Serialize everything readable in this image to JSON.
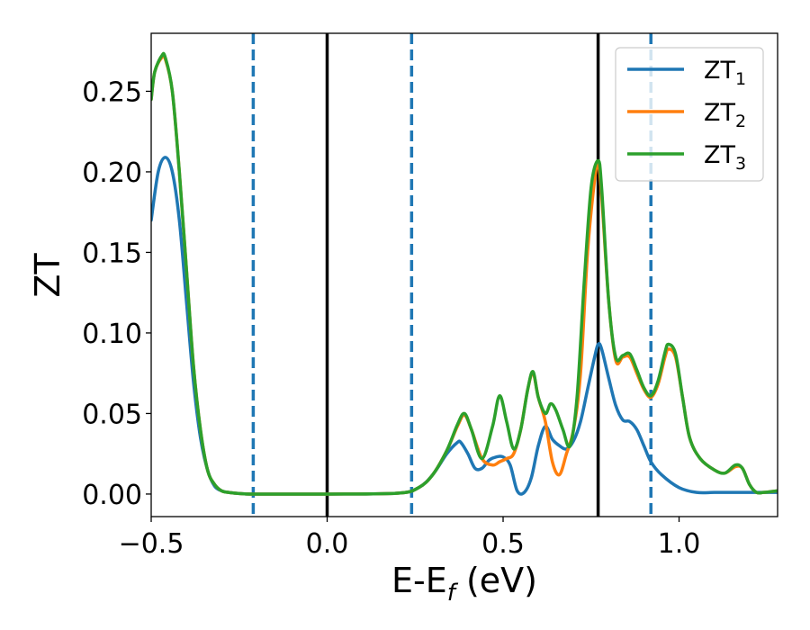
{
  "chart_data": {
    "type": "line",
    "title": "",
    "xlabel": "E-E",
    "xlabel_sub": "f",
    "xlabel_unit": "(eV)",
    "ylabel": "ZT",
    "xlim": [
      -0.5,
      1.28
    ],
    "ylim": [
      -0.014,
      0.286
    ],
    "grid": false,
    "legend": "top-right",
    "xticks": [
      -0.5,
      0.0,
      0.5,
      1.0
    ],
    "xtick_labels": [
      "−0.5",
      "0.0",
      "0.5",
      "1.0"
    ],
    "yticks": [
      0.0,
      0.05,
      0.1,
      0.15,
      0.2,
      0.25
    ],
    "ytick_labels": [
      "0.00",
      "0.05",
      "0.10",
      "0.15",
      "0.20",
      "0.25"
    ],
    "vlines": [
      {
        "x": -0.21,
        "style": "dashed",
        "color": "#1f77b4"
      },
      {
        "x": 0.0,
        "style": "solid",
        "color": "#000000"
      },
      {
        "x": 0.24,
        "style": "dashed",
        "color": "#1f77b4"
      },
      {
        "x": 0.77,
        "style": "solid",
        "color": "#000000"
      },
      {
        "x": 0.92,
        "style": "dashed",
        "color": "#1f77b4"
      }
    ],
    "series": [
      {
        "name": "ZT",
        "name_sub": "1",
        "color": "#1f77b4",
        "x": [
          -0.5,
          -0.48,
          -0.46,
          -0.44,
          -0.42,
          -0.4,
          -0.38,
          -0.36,
          -0.34,
          -0.32,
          -0.3,
          -0.28,
          -0.26,
          -0.24,
          -0.2,
          0.0,
          0.2,
          0.26,
          0.3,
          0.34,
          0.37,
          0.38,
          0.4,
          0.42,
          0.44,
          0.46,
          0.48,
          0.5,
          0.52,
          0.54,
          0.56,
          0.58,
          0.6,
          0.62,
          0.64,
          0.66,
          0.68,
          0.7,
          0.72,
          0.74,
          0.76,
          0.77,
          0.78,
          0.8,
          0.82,
          0.84,
          0.86,
          0.88,
          0.9,
          0.92,
          0.95,
          1.0,
          1.05,
          1.1,
          1.15,
          1.2,
          1.28
        ],
        "y": [
          0.17,
          0.2,
          0.209,
          0.2,
          0.17,
          0.12,
          0.07,
          0.035,
          0.015,
          0.005,
          0.002,
          0.001,
          0.0005,
          0.0002,
          0.0,
          0.0,
          0.0005,
          0.004,
          0.012,
          0.025,
          0.032,
          0.032,
          0.025,
          0.016,
          0.016,
          0.021,
          0.023,
          0.023,
          0.018,
          0.002,
          0.001,
          0.01,
          0.03,
          0.042,
          0.034,
          0.03,
          0.028,
          0.033,
          0.045,
          0.065,
          0.085,
          0.093,
          0.09,
          0.072,
          0.055,
          0.046,
          0.045,
          0.04,
          0.03,
          0.02,
          0.012,
          0.004,
          0.001,
          0.001,
          0.001,
          0.001,
          0.001
        ]
      },
      {
        "name": "ZT",
        "name_sub": "2",
        "color": "#ff7f0e",
        "x": [
          -0.5,
          -0.49,
          -0.47,
          -0.46,
          -0.44,
          -0.42,
          -0.4,
          -0.38,
          -0.36,
          -0.34,
          -0.32,
          -0.3,
          -0.28,
          -0.26,
          -0.24,
          -0.2,
          0.0,
          0.2,
          0.26,
          0.3,
          0.34,
          0.37,
          0.39,
          0.41,
          0.44,
          0.47,
          0.49,
          0.51,
          0.53,
          0.55,
          0.57,
          0.585,
          0.6,
          0.62,
          0.64,
          0.66,
          0.68,
          0.7,
          0.72,
          0.74,
          0.76,
          0.77,
          0.78,
          0.8,
          0.82,
          0.84,
          0.86,
          0.88,
          0.9,
          0.92,
          0.94,
          0.96,
          0.97,
          0.99,
          1.01,
          1.03,
          1.06,
          1.1,
          1.13,
          1.16,
          1.18,
          1.2,
          1.22,
          1.24,
          1.28
        ],
        "y": [
          0.245,
          0.262,
          0.271,
          0.27,
          0.25,
          0.2,
          0.14,
          0.08,
          0.04,
          0.015,
          0.006,
          0.002,
          0.001,
          0.0005,
          0.0002,
          0.0,
          0.0,
          0.0005,
          0.004,
          0.012,
          0.027,
          0.042,
          0.049,
          0.04,
          0.022,
          0.018,
          0.02,
          0.022,
          0.025,
          0.04,
          0.065,
          0.075,
          0.06,
          0.045,
          0.02,
          0.012,
          0.025,
          0.04,
          0.075,
          0.15,
          0.195,
          0.205,
          0.185,
          0.12,
          0.083,
          0.085,
          0.085,
          0.075,
          0.065,
          0.06,
          0.068,
          0.085,
          0.09,
          0.085,
          0.06,
          0.035,
          0.022,
          0.015,
          0.013,
          0.017,
          0.016,
          0.006,
          0.001,
          0.001,
          0.002
        ]
      },
      {
        "name": "ZT",
        "name_sub": "3",
        "color": "#2ca02c",
        "x": [
          -0.5,
          -0.49,
          -0.47,
          -0.46,
          -0.44,
          -0.42,
          -0.4,
          -0.38,
          -0.36,
          -0.34,
          -0.32,
          -0.3,
          -0.28,
          -0.26,
          -0.24,
          -0.2,
          0.0,
          0.2,
          0.26,
          0.3,
          0.34,
          0.37,
          0.39,
          0.41,
          0.44,
          0.47,
          0.49,
          0.51,
          0.53,
          0.55,
          0.57,
          0.585,
          0.6,
          0.62,
          0.635,
          0.65,
          0.67,
          0.69,
          0.71,
          0.73,
          0.75,
          0.77,
          0.78,
          0.8,
          0.82,
          0.84,
          0.86,
          0.88,
          0.9,
          0.92,
          0.94,
          0.96,
          0.97,
          0.99,
          1.01,
          1.03,
          1.06,
          1.1,
          1.13,
          1.16,
          1.18,
          1.2,
          1.22,
          1.24,
          1.28
        ],
        "y": [
          0.245,
          0.262,
          0.272,
          0.271,
          0.25,
          0.2,
          0.14,
          0.08,
          0.04,
          0.015,
          0.006,
          0.002,
          0.001,
          0.0005,
          0.0002,
          0.0,
          0.0,
          0.0005,
          0.004,
          0.012,
          0.027,
          0.043,
          0.05,
          0.04,
          0.022,
          0.042,
          0.061,
          0.045,
          0.028,
          0.04,
          0.065,
          0.076,
          0.06,
          0.05,
          0.056,
          0.052,
          0.04,
          0.03,
          0.06,
          0.13,
          0.19,
          0.207,
          0.19,
          0.12,
          0.085,
          0.086,
          0.087,
          0.077,
          0.066,
          0.061,
          0.07,
          0.088,
          0.093,
          0.087,
          0.06,
          0.035,
          0.022,
          0.015,
          0.013,
          0.018,
          0.016,
          0.006,
          0.001,
          0.001,
          0.002
        ]
      }
    ]
  }
}
